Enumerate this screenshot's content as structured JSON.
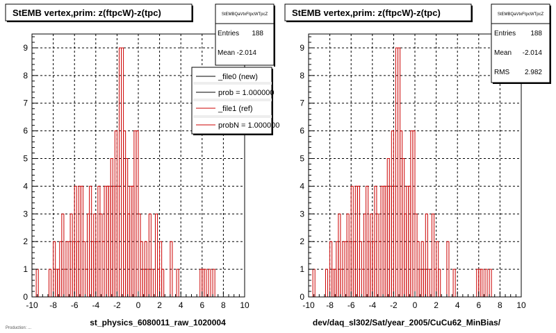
{
  "chart_data": [
    {
      "type": "histogram",
      "title": "StEMB  vertex,prim: z(ftpcW)-z(tpc)",
      "xlabel": "st_physics_6080011_raw_1020004",
      "xlim": [
        -10,
        10
      ],
      "ylim": [
        0,
        9.5
      ],
      "bin_width": 0.2,
      "x_ticks": [
        "-10",
        "-8",
        "-6",
        "-4",
        "-2",
        "0",
        "2",
        "4",
        "6",
        "8",
        "10"
      ],
      "y_ticks": [
        "0",
        "1",
        "2",
        "3",
        "4",
        "5",
        "6",
        "7",
        "8",
        "9"
      ],
      "grid": true,
      "line_color": "#cc0000",
      "series": [
        {
          "name": "_file1 (ref)",
          "bins": [
            [
              -9.6,
              1
            ],
            [
              -8.4,
              1
            ],
            [
              -8.0,
              2
            ],
            [
              -7.8,
              1
            ],
            [
              -7.6,
              1
            ],
            [
              -7.4,
              2
            ],
            [
              -7.2,
              3
            ],
            [
              -7.0,
              1
            ],
            [
              -6.8,
              2
            ],
            [
              -6.6,
              2
            ],
            [
              -6.4,
              3
            ],
            [
              -6.2,
              2
            ],
            [
              -6.0,
              4
            ],
            [
              -5.8,
              2
            ],
            [
              -5.6,
              4
            ],
            [
              -5.4,
              4
            ],
            [
              -5.2,
              2
            ],
            [
              -5.0,
              1
            ],
            [
              -4.8,
              3
            ],
            [
              -4.6,
              4
            ],
            [
              -4.4,
              2
            ],
            [
              -4.2,
              3
            ],
            [
              -4.0,
              2
            ],
            [
              -3.8,
              4
            ],
            [
              -3.6,
              3
            ],
            [
              -3.4,
              2
            ],
            [
              -3.2,
              4
            ],
            [
              -3.0,
              4
            ],
            [
              -2.8,
              4
            ],
            [
              -2.6,
              5
            ],
            [
              -2.4,
              4
            ],
            [
              -2.2,
              6
            ],
            [
              -2.0,
              4
            ],
            [
              -1.8,
              9
            ],
            [
              -1.6,
              9
            ],
            [
              -1.4,
              6
            ],
            [
              -1.2,
              5
            ],
            [
              -1.0,
              3
            ],
            [
              -0.8,
              4
            ],
            [
              -0.6,
              4
            ],
            [
              -0.4,
              6
            ],
            [
              -0.2,
              6
            ],
            [
              0.0,
              3
            ],
            [
              0.2,
              2
            ],
            [
              0.4,
              1
            ],
            [
              0.6,
              2
            ],
            [
              0.8,
              1
            ],
            [
              1.0,
              3
            ],
            [
              1.2,
              1
            ],
            [
              1.6,
              3
            ],
            [
              1.8,
              1
            ],
            [
              2.0,
              2
            ],
            [
              2.2,
              1
            ],
            [
              3.0,
              2
            ],
            [
              3.6,
              1
            ],
            [
              5.8,
              1
            ],
            [
              6.0,
              1
            ],
            [
              6.2,
              1
            ],
            [
              6.6,
              1
            ],
            [
              7.0,
              1
            ]
          ]
        }
      ],
      "stats": {
        "name": "StEMBQaVtxFtpcWTpcZ",
        "entries_label": "Entries",
        "entries": "188",
        "mean_label": "Mean",
        "mean": "-2.014"
      },
      "legend": {
        "placement": "top-right",
        "entries": [
          {
            "label": "_file0 (new)",
            "color": "#000000"
          },
          {
            "label": "prob = 1.000000",
            "color": "#000000"
          },
          {
            "label": "_file1 (ref)",
            "color": "#cc0000"
          },
          {
            "label": "probN = 1.000000",
            "color": "#cc0000"
          }
        ]
      }
    },
    {
      "type": "histogram",
      "title": "StEMB  vertex,prim: z(ftpcW)-z(tpc)",
      "xlabel": "dev/daq_sl302/Sat/year_2005/CuCu62_MinBias/",
      "xlim": [
        -10,
        10
      ],
      "ylim": [
        0,
        9.5
      ],
      "bin_width": 0.2,
      "x_ticks": [
        "-10",
        "-8",
        "-6",
        "-4",
        "-2",
        "0",
        "2",
        "4",
        "6",
        "8",
        "10"
      ],
      "y_ticks": [
        "0",
        "1",
        "2",
        "3",
        "4",
        "5",
        "6",
        "7",
        "8",
        "9"
      ],
      "grid": true,
      "line_color": "#cc0000",
      "series": [
        {
          "name": "",
          "bins": [
            [
              -9.6,
              1
            ],
            [
              -8.4,
              1
            ],
            [
              -8.0,
              2
            ],
            [
              -7.8,
              1
            ],
            [
              -7.6,
              1
            ],
            [
              -7.4,
              2
            ],
            [
              -7.2,
              3
            ],
            [
              -7.0,
              1
            ],
            [
              -6.8,
              2
            ],
            [
              -6.6,
              2
            ],
            [
              -6.4,
              3
            ],
            [
              -6.2,
              2
            ],
            [
              -6.0,
              4
            ],
            [
              -5.8,
              2
            ],
            [
              -5.6,
              4
            ],
            [
              -5.4,
              4
            ],
            [
              -5.2,
              2
            ],
            [
              -5.0,
              1
            ],
            [
              -4.8,
              3
            ],
            [
              -4.6,
              4
            ],
            [
              -4.4,
              2
            ],
            [
              -4.2,
              3
            ],
            [
              -4.0,
              2
            ],
            [
              -3.8,
              4
            ],
            [
              -3.6,
              3
            ],
            [
              -3.4,
              2
            ],
            [
              -3.2,
              4
            ],
            [
              -3.0,
              4
            ],
            [
              -2.8,
              4
            ],
            [
              -2.6,
              5
            ],
            [
              -2.4,
              4
            ],
            [
              -2.2,
              6
            ],
            [
              -2.0,
              4
            ],
            [
              -1.8,
              9
            ],
            [
              -1.6,
              9
            ],
            [
              -1.4,
              6
            ],
            [
              -1.2,
              5
            ],
            [
              -1.0,
              3
            ],
            [
              -0.8,
              4
            ],
            [
              -0.6,
              4
            ],
            [
              -0.4,
              6
            ],
            [
              -0.2,
              6
            ],
            [
              0.0,
              3
            ],
            [
              0.2,
              2
            ],
            [
              0.4,
              1
            ],
            [
              0.6,
              2
            ],
            [
              0.8,
              1
            ],
            [
              1.0,
              3
            ],
            [
              1.2,
              1
            ],
            [
              1.6,
              3
            ],
            [
              1.8,
              1
            ],
            [
              2.0,
              2
            ],
            [
              2.2,
              1
            ],
            [
              3.0,
              2
            ],
            [
              3.6,
              1
            ],
            [
              5.8,
              1
            ],
            [
              6.0,
              1
            ],
            [
              6.2,
              1
            ],
            [
              6.6,
              1
            ],
            [
              7.0,
              1
            ]
          ]
        }
      ],
      "stats": {
        "name": "StEMBQaVtxFtpcWTpcZ",
        "entries_label": "Entries",
        "entries": "188",
        "mean_label": "Mean",
        "mean": "-2.014",
        "rms_label": "RMS",
        "rms": "2.982"
      }
    }
  ],
  "footnote": "Production: ..."
}
